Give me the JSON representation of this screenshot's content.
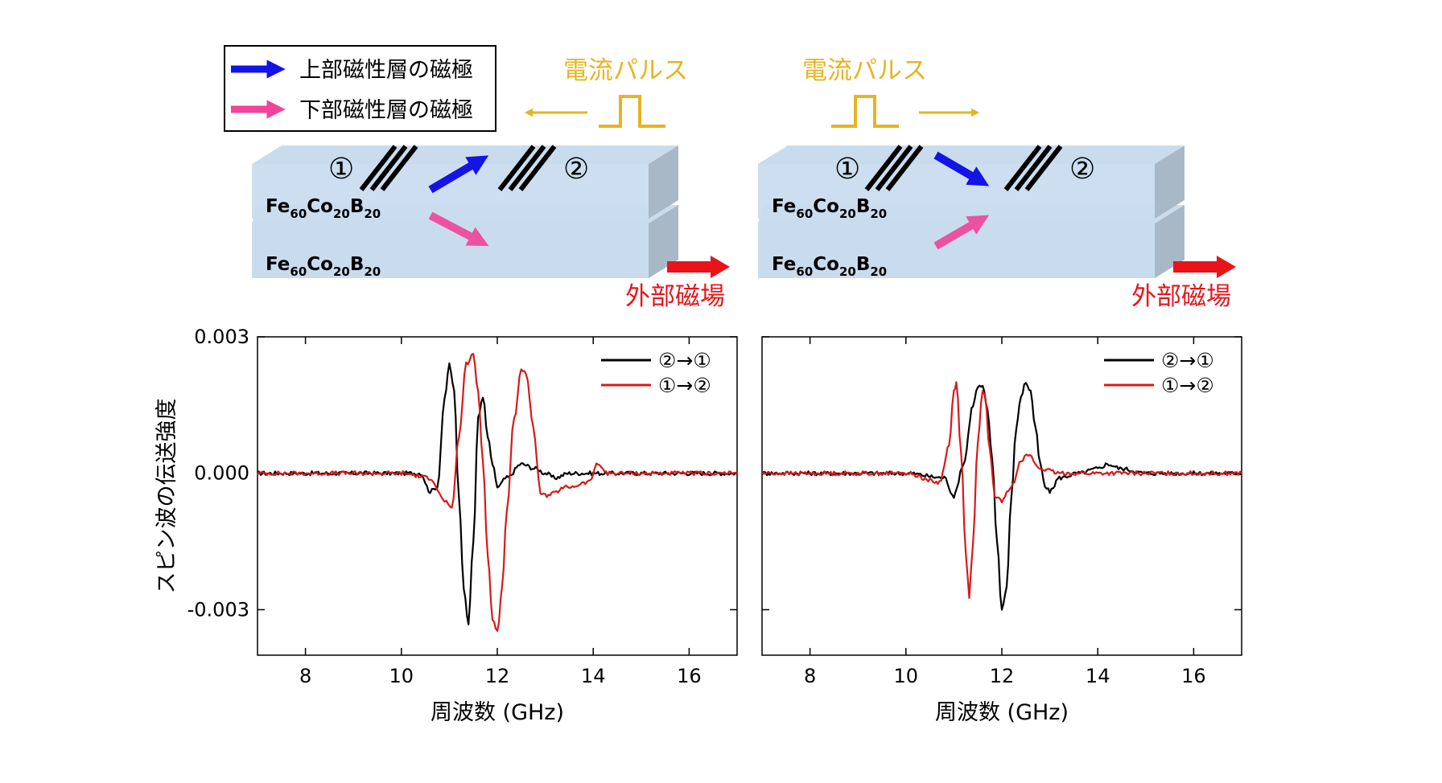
{
  "legend_box": {
    "upper_label": "上部磁性層の磁極",
    "lower_label": "下部磁性層の磁極"
  },
  "colors": {
    "upper_arrow": "#1414e6",
    "lower_arrow": "#f0449a",
    "pulse": "#e6b422",
    "field": "#e8141a",
    "slab_top": "#c9dcee",
    "slab_side": "#a9b8c6",
    "series_21": "#000000",
    "series_12": "#d61a1a"
  },
  "schematics": [
    {
      "pulse_label": "電流パルス",
      "pulse_direction": "left",
      "material_label_upper": {
        "base1": "Fe",
        "sub1": "60",
        "base2": "Co",
        "sub2": "20",
        "base3": "B",
        "sub3": "20"
      },
      "material_label_lower": {
        "base1": "Fe",
        "sub1": "60",
        "base2": "Co",
        "sub2": "20",
        "base3": "B",
        "sub3": "20"
      },
      "port1": "①",
      "port2": "②",
      "field_label": "外部磁場",
      "upper_arrow_direction": "up-right",
      "lower_arrow_direction": "down-right"
    },
    {
      "pulse_label": "電流パルス",
      "pulse_direction": "right",
      "material_label_upper": {
        "base1": "Fe",
        "sub1": "60",
        "base2": "Co",
        "sub2": "20",
        "base3": "B",
        "sub3": "20"
      },
      "material_label_lower": {
        "base1": "Fe",
        "sub1": "60",
        "base2": "Co",
        "sub2": "20",
        "base3": "B",
        "sub3": "20"
      },
      "port1": "①",
      "port2": "②",
      "field_label": "外部磁場",
      "upper_arrow_direction": "down-right",
      "lower_arrow_direction": "up-right"
    }
  ],
  "chart_data": [
    {
      "type": "line",
      "xlabel": "周波数 (GHz)",
      "ylabel": "スピン波の伝送強度",
      "xlim": [
        7,
        17
      ],
      "ylim": [
        -0.004,
        0.003
      ],
      "xticks": [
        8,
        10,
        12,
        14,
        16
      ],
      "yticks": [
        -0.003,
        0.0,
        0.003
      ],
      "ytick_labels": [
        "-0.003",
        "0.000",
        "0.003"
      ],
      "legend_position": "top-right",
      "series": [
        {
          "name": "②→①",
          "x": [
            7.0,
            8.0,
            9.0,
            10.0,
            10.4,
            10.6,
            10.75,
            10.9,
            11.0,
            11.1,
            11.2,
            11.3,
            11.4,
            11.5,
            11.6,
            11.7,
            11.8,
            11.9,
            12.0,
            12.2,
            12.5,
            12.8,
            13.0,
            13.2,
            13.5,
            14.0,
            15.0,
            16.0,
            17.0
          ],
          "values": [
            0.0,
            0.0,
            0.0,
            0.0,
            0.0,
            -0.0004,
            -0.0003,
            0.0016,
            0.0024,
            0.0018,
            -0.0005,
            -0.0025,
            -0.0033,
            -0.0015,
            0.0012,
            0.0017,
            0.0008,
            0.0002,
            -0.0003,
            -0.0001,
            0.0002,
            0.0001,
            0.0,
            -0.0001,
            0.0,
            0.0,
            0.0,
            0.0,
            0.0
          ]
        },
        {
          "name": "①→②",
          "x": [
            7.0,
            8.0,
            9.0,
            10.0,
            10.6,
            10.9,
            11.05,
            11.2,
            11.35,
            11.5,
            11.6,
            11.7,
            11.8,
            11.9,
            12.0,
            12.1,
            12.2,
            12.35,
            12.5,
            12.6,
            12.75,
            12.9,
            13.0,
            13.5,
            13.9,
            14.1,
            14.3,
            15.0,
            16.0,
            17.0
          ],
          "values": [
            0.0,
            0.0,
            0.0,
            0.0,
            -0.0001,
            -0.0006,
            -0.0008,
            0.0008,
            0.0024,
            0.0026,
            0.0018,
            0.0003,
            -0.0018,
            -0.0032,
            -0.0035,
            -0.0025,
            -0.0008,
            0.0012,
            0.0023,
            0.0022,
            0.001,
            -0.0004,
            -0.0005,
            -0.0003,
            -0.0002,
            0.0002,
            0.0,
            0.0,
            0.0,
            0.0
          ]
        }
      ]
    },
    {
      "type": "line",
      "xlabel": "周波数 (GHz)",
      "ylabel": "",
      "xlim": [
        7,
        17
      ],
      "ylim": [
        -0.004,
        0.003
      ],
      "xticks": [
        8,
        10,
        12,
        14,
        16
      ],
      "yticks": [
        -0.003,
        0.0,
        0.003
      ],
      "ytick_labels": [
        "",
        "",
        ""
      ],
      "legend_position": "top-right",
      "series": [
        {
          "name": "②→①",
          "x": [
            7.0,
            8.0,
            9.0,
            10.0,
            10.8,
            11.0,
            11.2,
            11.4,
            11.5,
            11.6,
            11.7,
            11.8,
            11.9,
            12.0,
            12.1,
            12.2,
            12.3,
            12.4,
            12.5,
            12.6,
            12.7,
            12.8,
            12.9,
            13.0,
            13.2,
            13.6,
            14.0,
            14.2,
            14.5,
            15.0,
            16.0,
            17.0
          ],
          "values": [
            0.0,
            0.0,
            0.0,
            0.0,
            -0.0001,
            -0.0005,
            0.0002,
            0.0015,
            0.0019,
            0.0019,
            0.0014,
            0.0003,
            -0.0015,
            -0.003,
            -0.0025,
            -0.0005,
            0.001,
            0.0017,
            0.002,
            0.0018,
            0.001,
            0.0002,
            -0.0003,
            -0.0004,
            -0.0001,
            0.0,
            0.0001,
            0.0002,
            0.0001,
            0.0,
            0.0,
            0.0
          ]
        },
        {
          "name": "①→②",
          "x": [
            7.0,
            8.0,
            9.0,
            10.0,
            10.7,
            10.9,
            11.0,
            11.05,
            11.15,
            11.25,
            11.32,
            11.4,
            11.5,
            11.6,
            11.65,
            11.75,
            11.85,
            12.0,
            12.2,
            12.4,
            12.55,
            12.8,
            13.2,
            14.0,
            15.0,
            16.0,
            17.0
          ],
          "values": [
            0.0,
            0.0,
            0.0,
            0.0,
            -0.0002,
            0.0006,
            0.0018,
            0.002,
            0.0005,
            -0.0018,
            -0.0027,
            -0.0015,
            0.0007,
            0.0018,
            0.0017,
            0.0005,
            -0.0005,
            -0.0006,
            -0.0003,
            0.0003,
            0.0004,
            0.0001,
            0.0,
            0.0,
            0.0,
            0.0,
            0.0
          ]
        }
      ]
    }
  ]
}
